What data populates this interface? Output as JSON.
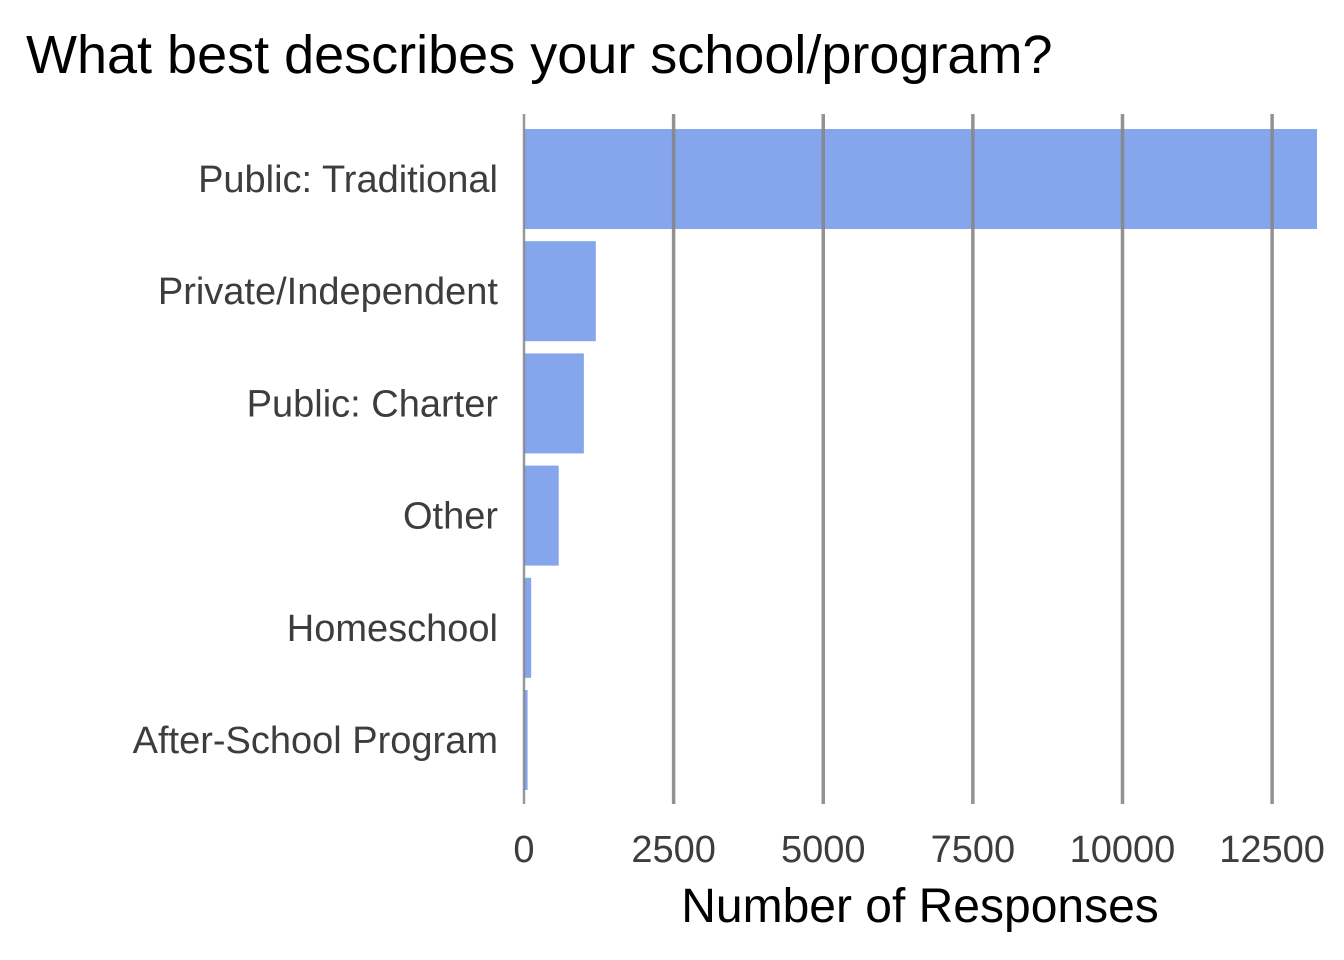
{
  "chart_data": {
    "type": "bar",
    "orientation": "horizontal",
    "title": "What best describes your school/program?",
    "xlabel": "Number of Responses",
    "ylabel": "",
    "categories": [
      "Public: Traditional",
      "Private/Independent",
      "Public: Charter",
      "Other",
      "Homeschool",
      "After-School Program"
    ],
    "values": [
      13250,
      1200,
      1000,
      580,
      120,
      60
    ],
    "xlim": [
      0,
      13250
    ],
    "xticks": [
      0,
      2500,
      5000,
      7500,
      10000,
      12500
    ],
    "xtick_labels": [
      "0",
      "2500",
      "5000",
      "7500",
      "10000",
      "12500"
    ],
    "grid": "vertical",
    "legend": "none",
    "colors": {
      "bar": "#85a5ed",
      "grid": "#868686",
      "tick_text": "#3d3d3d",
      "title_text": "#000000"
    }
  }
}
